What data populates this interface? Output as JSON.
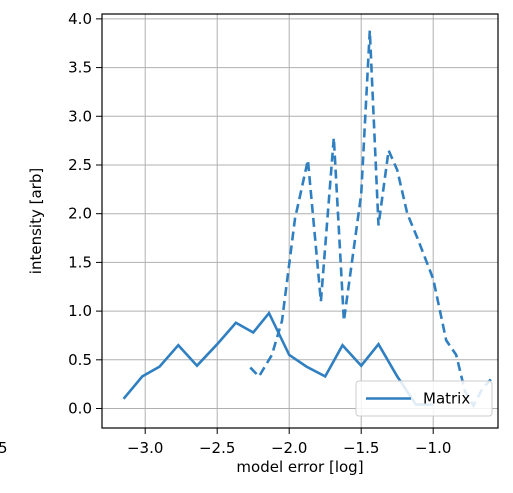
{
  "chart_data": {
    "type": "line",
    "title": "",
    "xlabel": "model error [log]",
    "ylabel": "intensity [arb]",
    "xlim": [
      -3.3,
      -0.55
    ],
    "ylim": [
      -0.2,
      4.05
    ],
    "x_ticks": [
      -3.0,
      -2.5,
      -2.0,
      -1.5,
      -1.0
    ],
    "x_tick_labels": [
      "−3.0",
      "−2.5",
      "−2.0",
      "−1.5",
      "−1.0"
    ],
    "y_ticks": [
      0.0,
      0.5,
      1.0,
      1.5,
      2.0,
      2.5,
      3.0,
      3.5,
      4.0
    ],
    "y_tick_labels": [
      "0.0",
      "0.5",
      "1.0",
      "1.5",
      "2.0",
      "2.5",
      "3.0",
      "3.5",
      "4.0"
    ],
    "edge_label": "5",
    "grid": true,
    "legend_position": "lower-right",
    "color": "#2f7fc1",
    "series": [
      {
        "name": "Matrix",
        "style": "solid",
        "x": [
          -3.15,
          -3.02,
          -2.9,
          -2.77,
          -2.64,
          -2.5,
          -2.37,
          -2.25,
          -2.14,
          -2.0,
          -1.88,
          -1.75,
          -1.63,
          -1.5,
          -1.38,
          -1.25,
          -1.12,
          -1.0
        ],
        "y": [
          0.1,
          0.33,
          0.43,
          0.65,
          0.44,
          0.66,
          0.88,
          0.78,
          0.98,
          0.55,
          0.43,
          0.33,
          0.65,
          0.44,
          0.66,
          0.33,
          0.04,
          0.04
        ]
      },
      {
        "style": "dashed",
        "x": [
          -2.27,
          -2.21,
          -2.12,
          -2.05,
          -1.96,
          -1.87,
          -1.78,
          -1.69,
          -1.62,
          -1.5,
          -1.44,
          -1.38,
          -1.31,
          -1.25,
          -1.18,
          -1.11,
          -1.0,
          -0.91,
          -0.84,
          -0.78,
          -0.72,
          -0.66,
          -0.6
        ],
        "y": [
          0.42,
          0.33,
          0.55,
          0.9,
          1.95,
          2.55,
          1.1,
          2.78,
          0.9,
          2.2,
          3.88,
          1.88,
          2.65,
          2.45,
          2.0,
          1.75,
          1.33,
          0.7,
          0.55,
          0.18,
          0.03,
          0.2,
          0.3
        ]
      }
    ]
  }
}
